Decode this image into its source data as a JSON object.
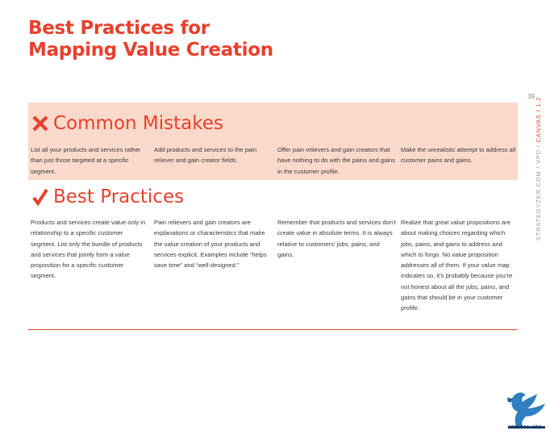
{
  "page": {
    "title_line1": "Best Practices for",
    "title_line2": "Mapping Value Creation",
    "page_number": "39",
    "side_label_prefix": "STRATEGYZER.COM / VPD / ",
    "side_label_highlight": "CANVAS / 1.2"
  },
  "mistakes": {
    "icon": "cross-icon",
    "heading": "Common Mistakes",
    "columns": [
      "List all your products and services rather than just those targeted at a specific segment.",
      "Add products and services to the pain reliever and gain creator fields.",
      "Offer pain relievers and gain creators that have nothing to do with the pains and gains in the customer profile.",
      "Make the unrealistic attempt to address all customer pains and gains."
    ]
  },
  "practices": {
    "icon": "checkmark-icon",
    "heading": "Best Practices",
    "columns": [
      "Products and services create value only in relationship to a specific customer segment. List only the bundle of products and services that jointly form a value proposition for a specific customer segment.",
      "Pain relievers and gain creators are explanations or characteristics that make the value creation of your products and services explicit. Examples include “helps save time” and “well-designed.”",
      "Remember that products and services don’t create value in absolute terms. It is always relative to customers’ jobs, pains, and gains.",
      "Realize that great value propositions are about making choices regarding which jobs, pains, and gains to address and which to forgo. No value proposition addresses all of them. If your value map indicates so, it’s probably because you’re not honest about all the jobs, pains, and gains that should be in your customer profile."
    ]
  },
  "watermark": {
    "icon": "eagle-logo",
    "text": "ARMASIA.ORG"
  },
  "colors": {
    "accent": "#e8402c",
    "band": "#fbd9cb",
    "body_text": "#3a3a3a"
  }
}
